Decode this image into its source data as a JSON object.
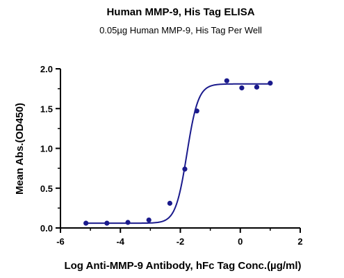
{
  "chart_data": {
    "type": "scatter",
    "title": "Human MMP-9, His Tag ELISA",
    "subtitle": "0.05µg Human MMP-9, His Tag Per Well",
    "xlabel": "Log Anti-MMP-9 Antibody, hFc Tag Conc.(µg/ml)",
    "ylabel": "Mean Abs.(OD450)",
    "xlim": [
      -6,
      2
    ],
    "ylim": [
      0,
      2.0
    ],
    "x_ticks": [
      -6,
      -4,
      -2,
      0,
      2
    ],
    "x_tick_labels": [
      "-6",
      "-4",
      "-2",
      "0",
      "2"
    ],
    "y_ticks": [
      0.0,
      0.5,
      1.0,
      1.5,
      2.0
    ],
    "y_tick_labels": [
      "0.0",
      "0.5",
      "1.0",
      "1.5",
      "2.0"
    ],
    "grid": false,
    "legend": "none",
    "series": [
      {
        "points": [
          {
            "x": -5.15,
            "y": 0.06
          },
          {
            "x": -4.45,
            "y": 0.06
          },
          {
            "x": -3.75,
            "y": 0.07
          },
          {
            "x": -3.05,
            "y": 0.1
          },
          {
            "x": -2.35,
            "y": 0.31
          },
          {
            "x": -1.85,
            "y": 0.74
          },
          {
            "x": -1.45,
            "y": 1.47
          },
          {
            "x": -0.45,
            "y": 1.85
          },
          {
            "x": 0.05,
            "y": 1.76
          },
          {
            "x": 0.55,
            "y": 1.77
          },
          {
            "x": 1.0,
            "y": 1.82
          }
        ],
        "fit": {
          "model": "4PL",
          "bottom": 0.06,
          "top": 1.81,
          "logEC50": -1.78,
          "hill": 2.3,
          "x_range": [
            -5.15,
            1.0
          ]
        },
        "color": "#1a1a8c"
      }
    ]
  }
}
